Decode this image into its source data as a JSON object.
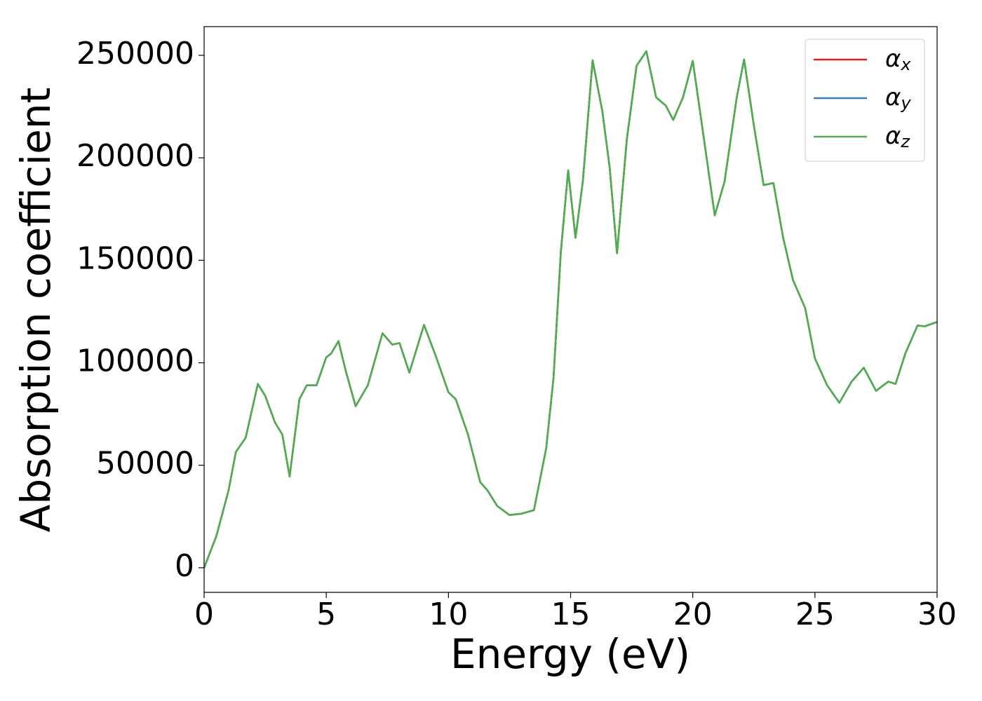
{
  "chart_data": {
    "type": "line",
    "xlabel": "Energy (eV)",
    "ylabel": "Absorption coefficient",
    "x": [
      0,
      0.5,
      1.0,
      1.3,
      1.7,
      2.2,
      2.5,
      2.9,
      3.2,
      3.5,
      3.9,
      4.2,
      4.6,
      5.0,
      5.2,
      5.5,
      5.8,
      6.2,
      6.7,
      7.3,
      7.7,
      8.0,
      8.4,
      9.0,
      9.5,
      10.0,
      10.3,
      10.8,
      11.3,
      11.6,
      12.0,
      12.5,
      13.0,
      13.5,
      14.0,
      14.3,
      14.6,
      14.9,
      15.2,
      15.5,
      15.9,
      16.3,
      16.6,
      16.9,
      17.3,
      17.7,
      18.1,
      18.5,
      18.9,
      19.2,
      19.6,
      20.0,
      20.4,
      20.9,
      21.3,
      21.8,
      22.1,
      22.5,
      22.9,
      23.3,
      23.7,
      24.1,
      24.6,
      25.0,
      25.5,
      26.0,
      26.5,
      27.0,
      27.5,
      28.0,
      28.3,
      28.7,
      29.2,
      29.5,
      30.0
    ],
    "series": [
      {
        "name": "αx",
        "color": "#e41a1c",
        "values": [
          0,
          15400,
          37700,
          56500,
          63400,
          89700,
          83900,
          70900,
          65000,
          44500,
          82200,
          89000,
          89000,
          102700,
          104500,
          110600,
          95900,
          78800,
          89000,
          114400,
          108900,
          109600,
          95200,
          118500,
          102700,
          85600,
          82200,
          65000,
          41800,
          37700,
          30100,
          25700,
          26400,
          28100,
          58200,
          92500,
          154100,
          193900,
          161000,
          188400,
          247600,
          222600,
          195200,
          153400,
          208900,
          244900,
          252000,
          229500,
          225400,
          218500,
          229500,
          247300,
          214000,
          171900,
          188400,
          229500,
          248000,
          215800,
          186700,
          187700,
          161000,
          140400,
          126700,
          102100,
          89000,
          80500,
          90800,
          97600,
          86300,
          90800,
          89700,
          104500,
          118200,
          117800,
          119900
        ]
      },
      {
        "name": "αy",
        "color": "#377eb8",
        "values": [
          0,
          15400,
          37700,
          56500,
          63400,
          89700,
          83900,
          70900,
          65000,
          44500,
          82200,
          89000,
          89000,
          102700,
          104500,
          110600,
          95900,
          78800,
          89000,
          114400,
          108900,
          109600,
          95200,
          118500,
          102700,
          85600,
          82200,
          65000,
          41800,
          37700,
          30100,
          25700,
          26400,
          28100,
          58200,
          92500,
          154100,
          193900,
          161000,
          188400,
          247600,
          222600,
          195200,
          153400,
          208900,
          244900,
          252000,
          229500,
          225400,
          218500,
          229500,
          247300,
          214000,
          171900,
          188400,
          229500,
          248000,
          215800,
          186700,
          187700,
          161000,
          140400,
          126700,
          102100,
          89000,
          80500,
          90800,
          97600,
          86300,
          90800,
          89700,
          104500,
          118200,
          117800,
          119900
        ]
      },
      {
        "name": "αz",
        "color": "#4daf4a",
        "values": [
          0,
          15400,
          37700,
          56500,
          63400,
          89700,
          83900,
          70900,
          65000,
          44500,
          82200,
          89000,
          89000,
          102700,
          104500,
          110600,
          95900,
          78800,
          89000,
          114400,
          108900,
          109600,
          95200,
          118500,
          102700,
          85600,
          82200,
          65000,
          41800,
          37700,
          30100,
          25700,
          26400,
          28100,
          58200,
          92500,
          154100,
          193900,
          161000,
          188400,
          247600,
          222600,
          195200,
          153400,
          208900,
          244900,
          252000,
          229500,
          225400,
          218500,
          229500,
          247300,
          214000,
          171900,
          188400,
          229500,
          248000,
          215800,
          186700,
          187700,
          161000,
          140400,
          126700,
          102100,
          89000,
          80500,
          90800,
          97600,
          86300,
          90800,
          89700,
          104500,
          118200,
          117800,
          119900
        ]
      }
    ],
    "xlim": [
      0,
      30
    ],
    "xticks": [
      0,
      5,
      10,
      15,
      20,
      25,
      30
    ],
    "ylim": [
      -12000,
      264000
    ],
    "yticks": [
      0,
      50000,
      100000,
      150000,
      200000,
      250000
    ],
    "legend": "upper right"
  }
}
